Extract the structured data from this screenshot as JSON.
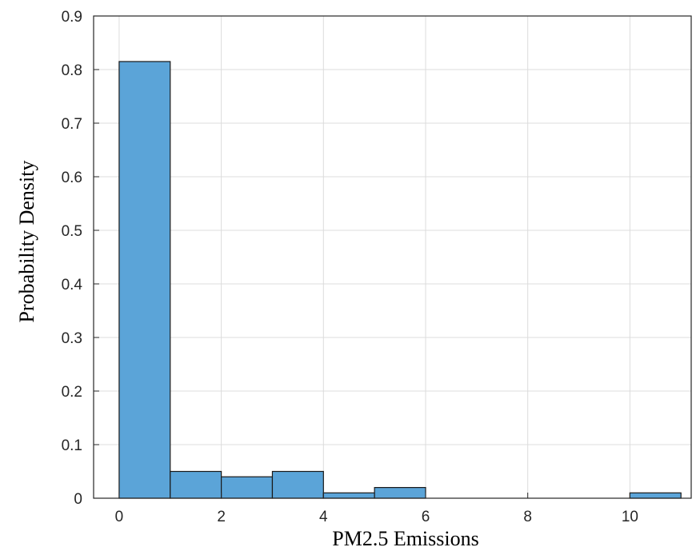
{
  "chart_data": {
    "type": "bar",
    "subtype": "histogram",
    "xlabel": "PM2.5 Emissions",
    "ylabel": "Probability Density",
    "xlim": [
      -0.5,
      11.2
    ],
    "ylim": [
      0,
      0.9
    ],
    "xticks": [
      0,
      2,
      4,
      6,
      8,
      10
    ],
    "yticks": [
      0,
      0.1,
      0.2,
      0.3,
      0.4,
      0.5,
      0.6,
      0.7,
      0.8,
      0.9
    ],
    "grid": true,
    "bin_edges": [
      0,
      1,
      2,
      3,
      4,
      5,
      6,
      7,
      8,
      9,
      10,
      11
    ],
    "values": [
      0.815,
      0.05,
      0.04,
      0.05,
      0.01,
      0.02,
      0,
      0,
      0,
      0,
      0.01
    ],
    "bar_color": "#5ba4d8",
    "edge_color": "#1a1a1a"
  }
}
